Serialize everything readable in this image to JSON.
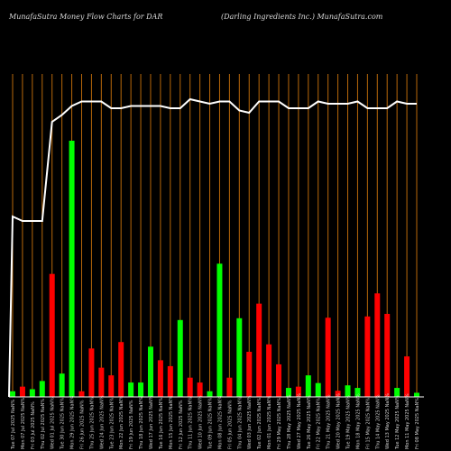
{
  "header": {
    "left": "MunafaSutra  Money Flow  Charts for DAR",
    "right": "(Darling Ingredients Inc.) MunafaSutra.com"
  },
  "colors": {
    "background": "#000000",
    "gridline": "#b8680a",
    "up_bar": "#00ff00",
    "down_bar": "#ff0000",
    "price_line": "#ffffff",
    "baseline": "#ffffff"
  },
  "chart_data": {
    "type": "bar",
    "title": "MunafaSutra  Money Flow  Charts for DAR",
    "subtitle": "(Darling Ingredients Inc.) MunafaSutra.com",
    "grid": true,
    "gridline_orientation": "vertical",
    "y_scale_note": "no numeric y axis shown; values in relative units (0-100)",
    "categories": [
      "Tue 07 Jul 2025 NaN%",
      "Mon 07 Jul 2025 NaN%",
      "Fri 03 Jul 2025 NaN%",
      "Thu 02 Jul 2025 NaN%",
      "Wed 01 Jul 2025 NaN%",
      "Tue 30 Jun 2025 NaN%",
      "Mon 29 Jun 2025 NaN%",
      "Fri 26 Jun 2025 NaN%",
      "Thu 25 Jun 2025 NaN%",
      "Wed 24 Jun 2025 NaN%",
      "Tue 23 Jun 2025 NaN%",
      "Mon 22 Jun 2025 NaN%",
      "Fri 19 Jun 2025 NaN%",
      "Thu 18 Jun 2025 NaN%",
      "Wed 17 Jun 2025 NaN%",
      "Tue 16 Jun 2025 NaN%",
      "Mon 15 Jun 2025 NaN%",
      "Fri 12 Jun 2025 NaN%",
      "Thu 11 Jun 2025 NaN%",
      "Wed 10 Jun 2025 NaN%",
      "Tue 09 Jun 2025 NaN%",
      "Mon 08 Jun 2025 NaN%",
      "Fri 05 Jun 2025 NaN%",
      "Thu 04 Jun 2025 NaN%",
      "Wed 03 Jun 2025 NaN%",
      "Tue 02 Jun 2025 NaN%",
      "Mon 01 Jun 2025 NaN%",
      "Fri 29 May 2025 NaN%",
      "Thu 28 May 2025 NaN%",
      "Wed 27 May 2025 NaN%",
      "Tue 26 May 2025 NaN%",
      "Fri 22 May 2025 NaN%",
      "Thu 21 May 2025 NaN%",
      "Wed 20 May 2025 NaN%",
      "Tue 19 May 2025 NaN%",
      "Mon 18 May 2025 NaN%",
      "Fri 15 May 2025 NaN%",
      "Thu 14 May 2025 NaN%",
      "Wed 13 May 2025 NaN%",
      "Tue 12 May 2025 NaN%",
      "Mon 11 May 2025 NaN%",
      "Fri 08 May 2025 NaN%"
    ],
    "series": [
      {
        "values": [
          2.2,
          4,
          3,
          6.2,
          48,
          9.1,
          100,
          2.2,
          18.9,
          11.4,
          8.4,
          21.4,
          5.6,
          5.6,
          19.6,
          14.3,
          12,
          30,
          7.5,
          5.6,
          2.2,
          52,
          7.5,
          30.7,
          17.6,
          36.4,
          20.5,
          12.7,
          3.5,
          4,
          8.4,
          5.4,
          30.9,
          2.4,
          4.5,
          3.5,
          31.4,
          40.4,
          32.4,
          3.5,
          15.8,
          1.6
        ],
        "directions": [
          "up",
          "down",
          "up",
          "up",
          "down",
          "up",
          "up",
          "down",
          "down",
          "down",
          "down",
          "down",
          "up",
          "up",
          "up",
          "down",
          "down",
          "up",
          "down",
          "down",
          "up",
          "up",
          "down",
          "up",
          "down",
          "down",
          "down",
          "down",
          "up",
          "down",
          "up",
          "up",
          "down",
          "down",
          "up",
          "up",
          "down",
          "down",
          "down",
          "up",
          "down",
          "up"
        ]
      },
      {
        "values": [
          36,
          34,
          34,
          34,
          78,
          81,
          85,
          87,
          87,
          87,
          84,
          84,
          85,
          85,
          85,
          85,
          84,
          84,
          88,
          87,
          86,
          87,
          87,
          83,
          82,
          87,
          87,
          87,
          84,
          84,
          84,
          87,
          86,
          86,
          86,
          87,
          84,
          84,
          84,
          87,
          86,
          86
        ]
      }
    ]
  }
}
